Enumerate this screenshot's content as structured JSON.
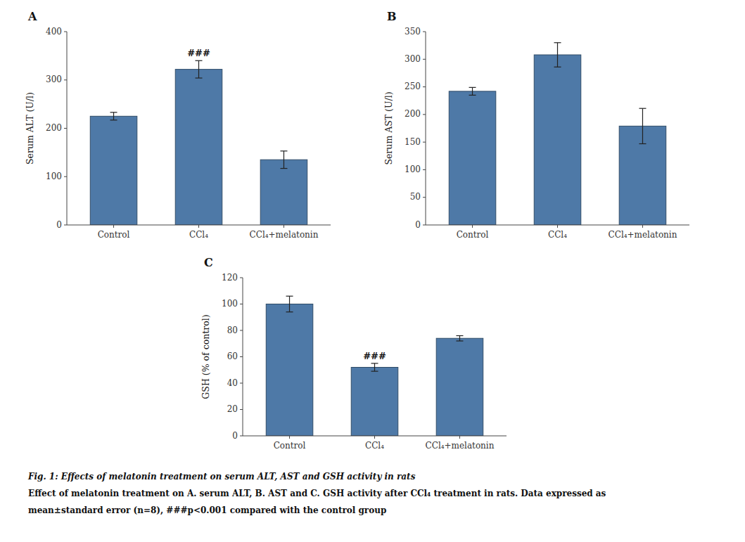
{
  "chart_data": [
    {
      "type": "bar",
      "title": "A",
      "categories": [
        "Control",
        "CCl₄",
        "CCl₄+melatonin"
      ],
      "values": [
        225,
        322,
        135
      ],
      "errors": [
        8,
        18,
        18
      ],
      "y_label": "Serum ALT (U/l)",
      "ylim": [
        0,
        400
      ],
      "yticks": [
        0,
        100,
        200,
        300,
        400
      ],
      "annotations": [
        {
          "text": "###",
          "category": "CCl₄"
        }
      ],
      "grid": false
    },
    {
      "type": "bar",
      "title": "B",
      "categories": [
        "Control",
        "CCl₄",
        "CCl₄+melatonin"
      ],
      "values": [
        242,
        308,
        179
      ],
      "errors": [
        7,
        22,
        32
      ],
      "y_label": "Serum AST (U/l)",
      "ylim": [
        0,
        350
      ],
      "yticks": [
        0,
        50,
        100,
        150,
        200,
        250,
        300,
        350
      ],
      "grid": false
    },
    {
      "type": "bar",
      "title": "C",
      "categories": [
        "Control",
        "CCl₄",
        "CCl₄+melatonin"
      ],
      "values": [
        100,
        52,
        74
      ],
      "errors": [
        6,
        3,
        2
      ],
      "y_label": "GSH (% of control)",
      "ylim": [
        0,
        120
      ],
      "yticks": [
        0,
        20,
        40,
        60,
        80,
        100,
        120
      ],
      "annotations": [
        {
          "text": "###",
          "category": "CCl₄"
        }
      ],
      "grid": false
    }
  ],
  "caption": [
    "Fig. 1: Effects of melatonin treatment on serum ALT, AST and GSH activity in rats",
    "Effect of melatonin treatment on A. serum ALT, B. AST and C. GSH activity after CCl₄ treatment in rats. Data expressed as",
    "mean±standard error (n=8), ###p<0.001 compared with the control group"
  ]
}
